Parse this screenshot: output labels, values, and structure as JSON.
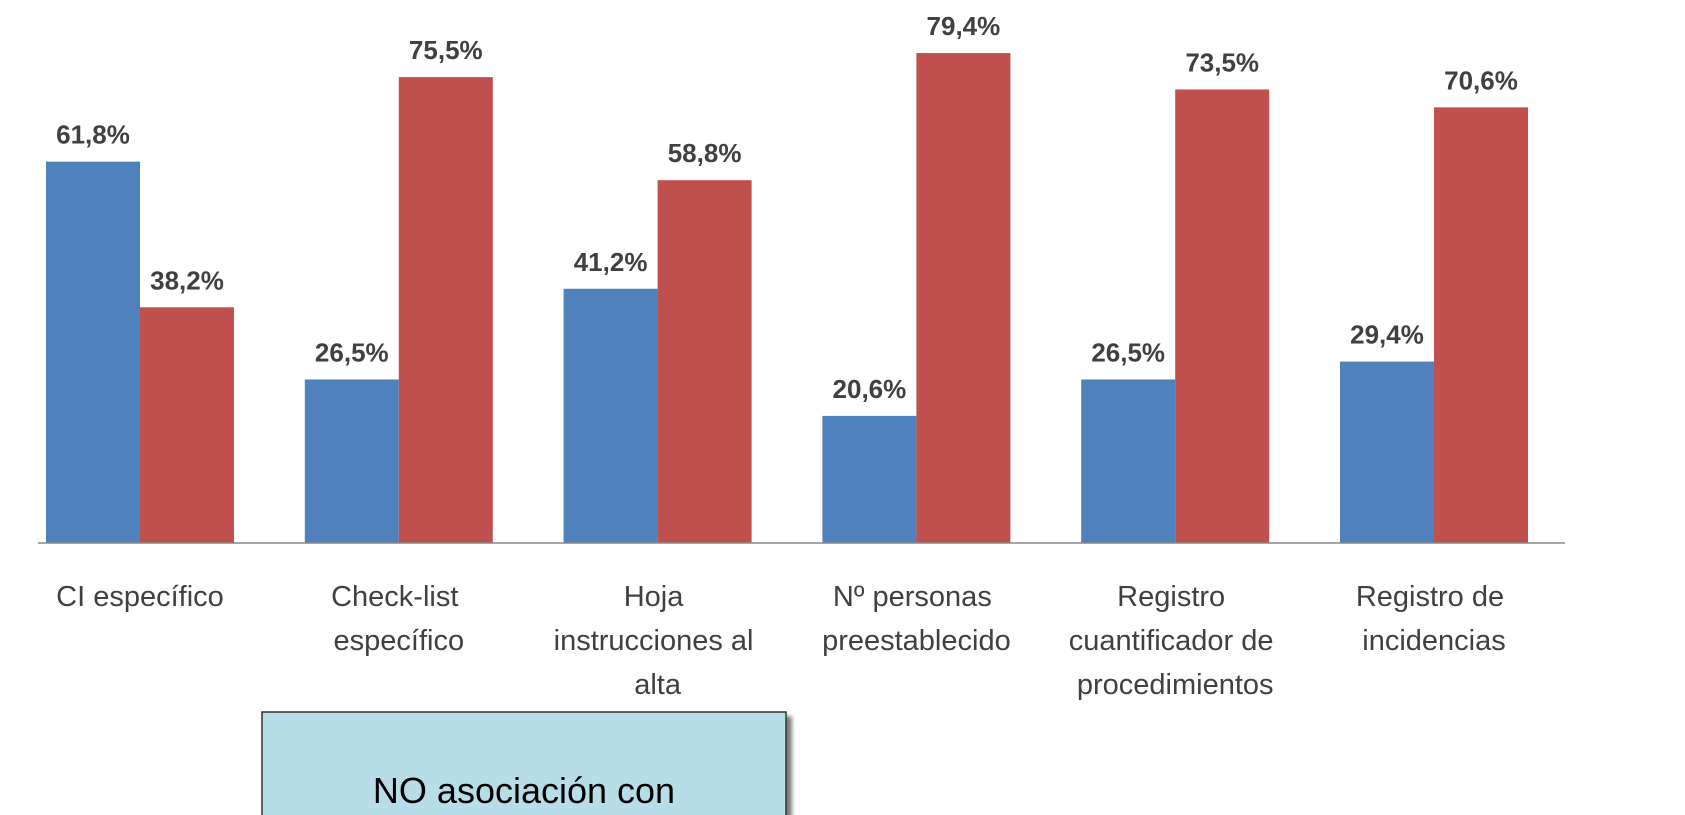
{
  "chart_data": {
    "type": "bar",
    "categories": [
      "CI específico",
      "Check-list específico",
      "Hoja instrucciones al alta",
      "Nº personas preestablecido",
      "Registro cuantificador de procedimientos",
      "Registro de incidencias"
    ],
    "series": [
      {
        "color": "#4f81bd",
        "values": [
          61.8,
          26.5,
          41.2,
          20.6,
          26.5,
          29.4
        ],
        "value_labels": [
          "61,8%",
          "26,5%",
          "41,2%",
          "20,6%",
          "26,5%",
          "29,4%"
        ]
      },
      {
        "color": "#c0504d",
        "values": [
          38.2,
          75.5,
          58.8,
          79.4,
          73.5,
          70.6
        ],
        "value_labels": [
          "38,2%",
          "75,5%",
          "58,8%",
          "79,4%",
          "73,5%",
          "70,6%"
        ]
      }
    ],
    "ylim": [
      0,
      88
    ],
    "annotation": "NO asociación con"
  }
}
